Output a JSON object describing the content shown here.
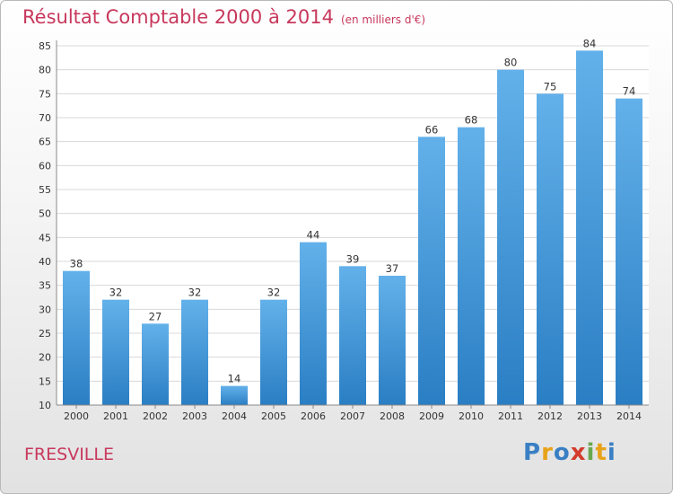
{
  "title": "Résultat Comptable 2000 à 2014",
  "subtitle": "(en milliers d'€)",
  "commune": "FRESVILLE",
  "logo": {
    "letters": [
      "P",
      "r",
      "o",
      "x",
      "i",
      "t",
      "i"
    ],
    "colors": [
      "#3a7fc4",
      "#e8a21a",
      "#3a7fc4",
      "#d33b2c",
      "#6aa84f",
      "#e8a21a",
      "#3a7fc4"
    ]
  },
  "colors": {
    "bar_light": "#63b1ea",
    "bar_dark": "#2a7ec3",
    "title": "#c8385c"
  },
  "chart_data": {
    "type": "bar",
    "categories": [
      "2000",
      "2001",
      "2002",
      "2003",
      "2004",
      "2005",
      "2006",
      "2007",
      "2008",
      "2009",
      "2010",
      "2011",
      "2012",
      "2013",
      "2014"
    ],
    "values": [
      38,
      32,
      27,
      32,
      14,
      32,
      44,
      39,
      37,
      66,
      68,
      80,
      75,
      84,
      74
    ],
    "title": "Résultat Comptable 2000 à 2014",
    "xlabel": "",
    "ylabel": "",
    "ylim": [
      10,
      85
    ],
    "yticks": [
      10,
      15,
      20,
      25,
      30,
      35,
      40,
      45,
      50,
      55,
      60,
      65,
      70,
      75,
      80,
      85
    ],
    "grid": true,
    "legend": "none"
  }
}
